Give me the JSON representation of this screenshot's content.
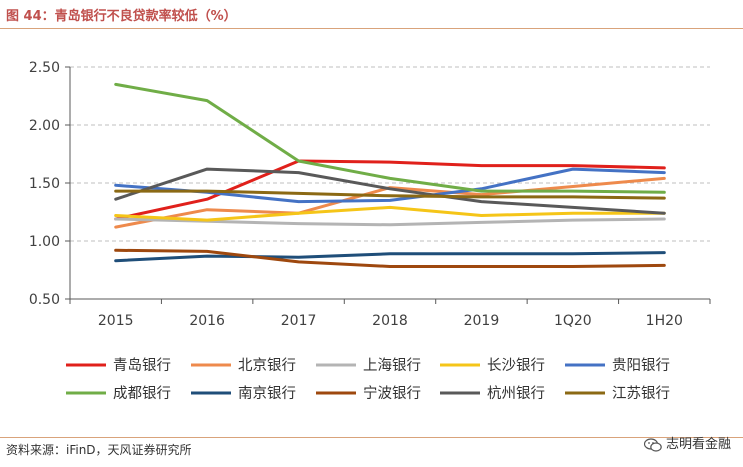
{
  "header": {
    "title": "图 44：青岛银行不良贷款率较低（%）"
  },
  "footer": {
    "source": "资料来源：iFinD，天风证券研究所",
    "watermark": "志明看金融"
  },
  "chart_data": {
    "type": "line",
    "title": "",
    "xlabel": "",
    "ylabel": "",
    "ylim": [
      0.5,
      2.5
    ],
    "yticks": [
      "0.50",
      "1.00",
      "1.50",
      "2.00",
      "2.50"
    ],
    "categories": [
      "2015",
      "2016",
      "2017",
      "2018",
      "2019",
      "1Q20",
      "1H20"
    ],
    "grid": "horizontal dashed",
    "legend_position": "bottom",
    "series": [
      {
        "name": "青岛银行",
        "color": "#e0201b",
        "values": [
          1.19,
          1.36,
          1.69,
          1.68,
          1.65,
          1.65,
          1.63
        ]
      },
      {
        "name": "北京银行",
        "color": "#ee8a4c",
        "values": [
          1.12,
          1.27,
          1.24,
          1.46,
          1.4,
          1.47,
          1.54
        ]
      },
      {
        "name": "上海银行",
        "color": "#b4b4b4",
        "values": [
          1.19,
          1.17,
          1.15,
          1.14,
          1.16,
          1.18,
          1.19
        ]
      },
      {
        "name": "长沙银行",
        "color": "#f5c518",
        "values": [
          1.22,
          1.18,
          1.24,
          1.29,
          1.22,
          1.24,
          1.24
        ]
      },
      {
        "name": "贵阳银行",
        "color": "#4472c4",
        "values": [
          1.48,
          1.42,
          1.34,
          1.35,
          1.45,
          1.62,
          1.59
        ]
      },
      {
        "name": "成都银行",
        "color": "#70ad47",
        "values": [
          2.35,
          2.21,
          1.69,
          1.54,
          1.43,
          1.43,
          1.42
        ]
      },
      {
        "name": "南京银行",
        "color": "#1f4e79",
        "values": [
          0.83,
          0.87,
          0.86,
          0.89,
          0.89,
          0.89,
          0.9
        ]
      },
      {
        "name": "宁波银行",
        "color": "#9e480e",
        "values": [
          0.92,
          0.91,
          0.82,
          0.78,
          0.78,
          0.78,
          0.79
        ]
      },
      {
        "name": "杭州银行",
        "color": "#595959",
        "values": [
          1.36,
          1.62,
          1.59,
          1.45,
          1.34,
          1.29,
          1.24
        ]
      },
      {
        "name": "江苏银行",
        "color": "#8b6914",
        "values": [
          1.43,
          1.43,
          1.41,
          1.39,
          1.38,
          1.38,
          1.37
        ]
      }
    ]
  }
}
